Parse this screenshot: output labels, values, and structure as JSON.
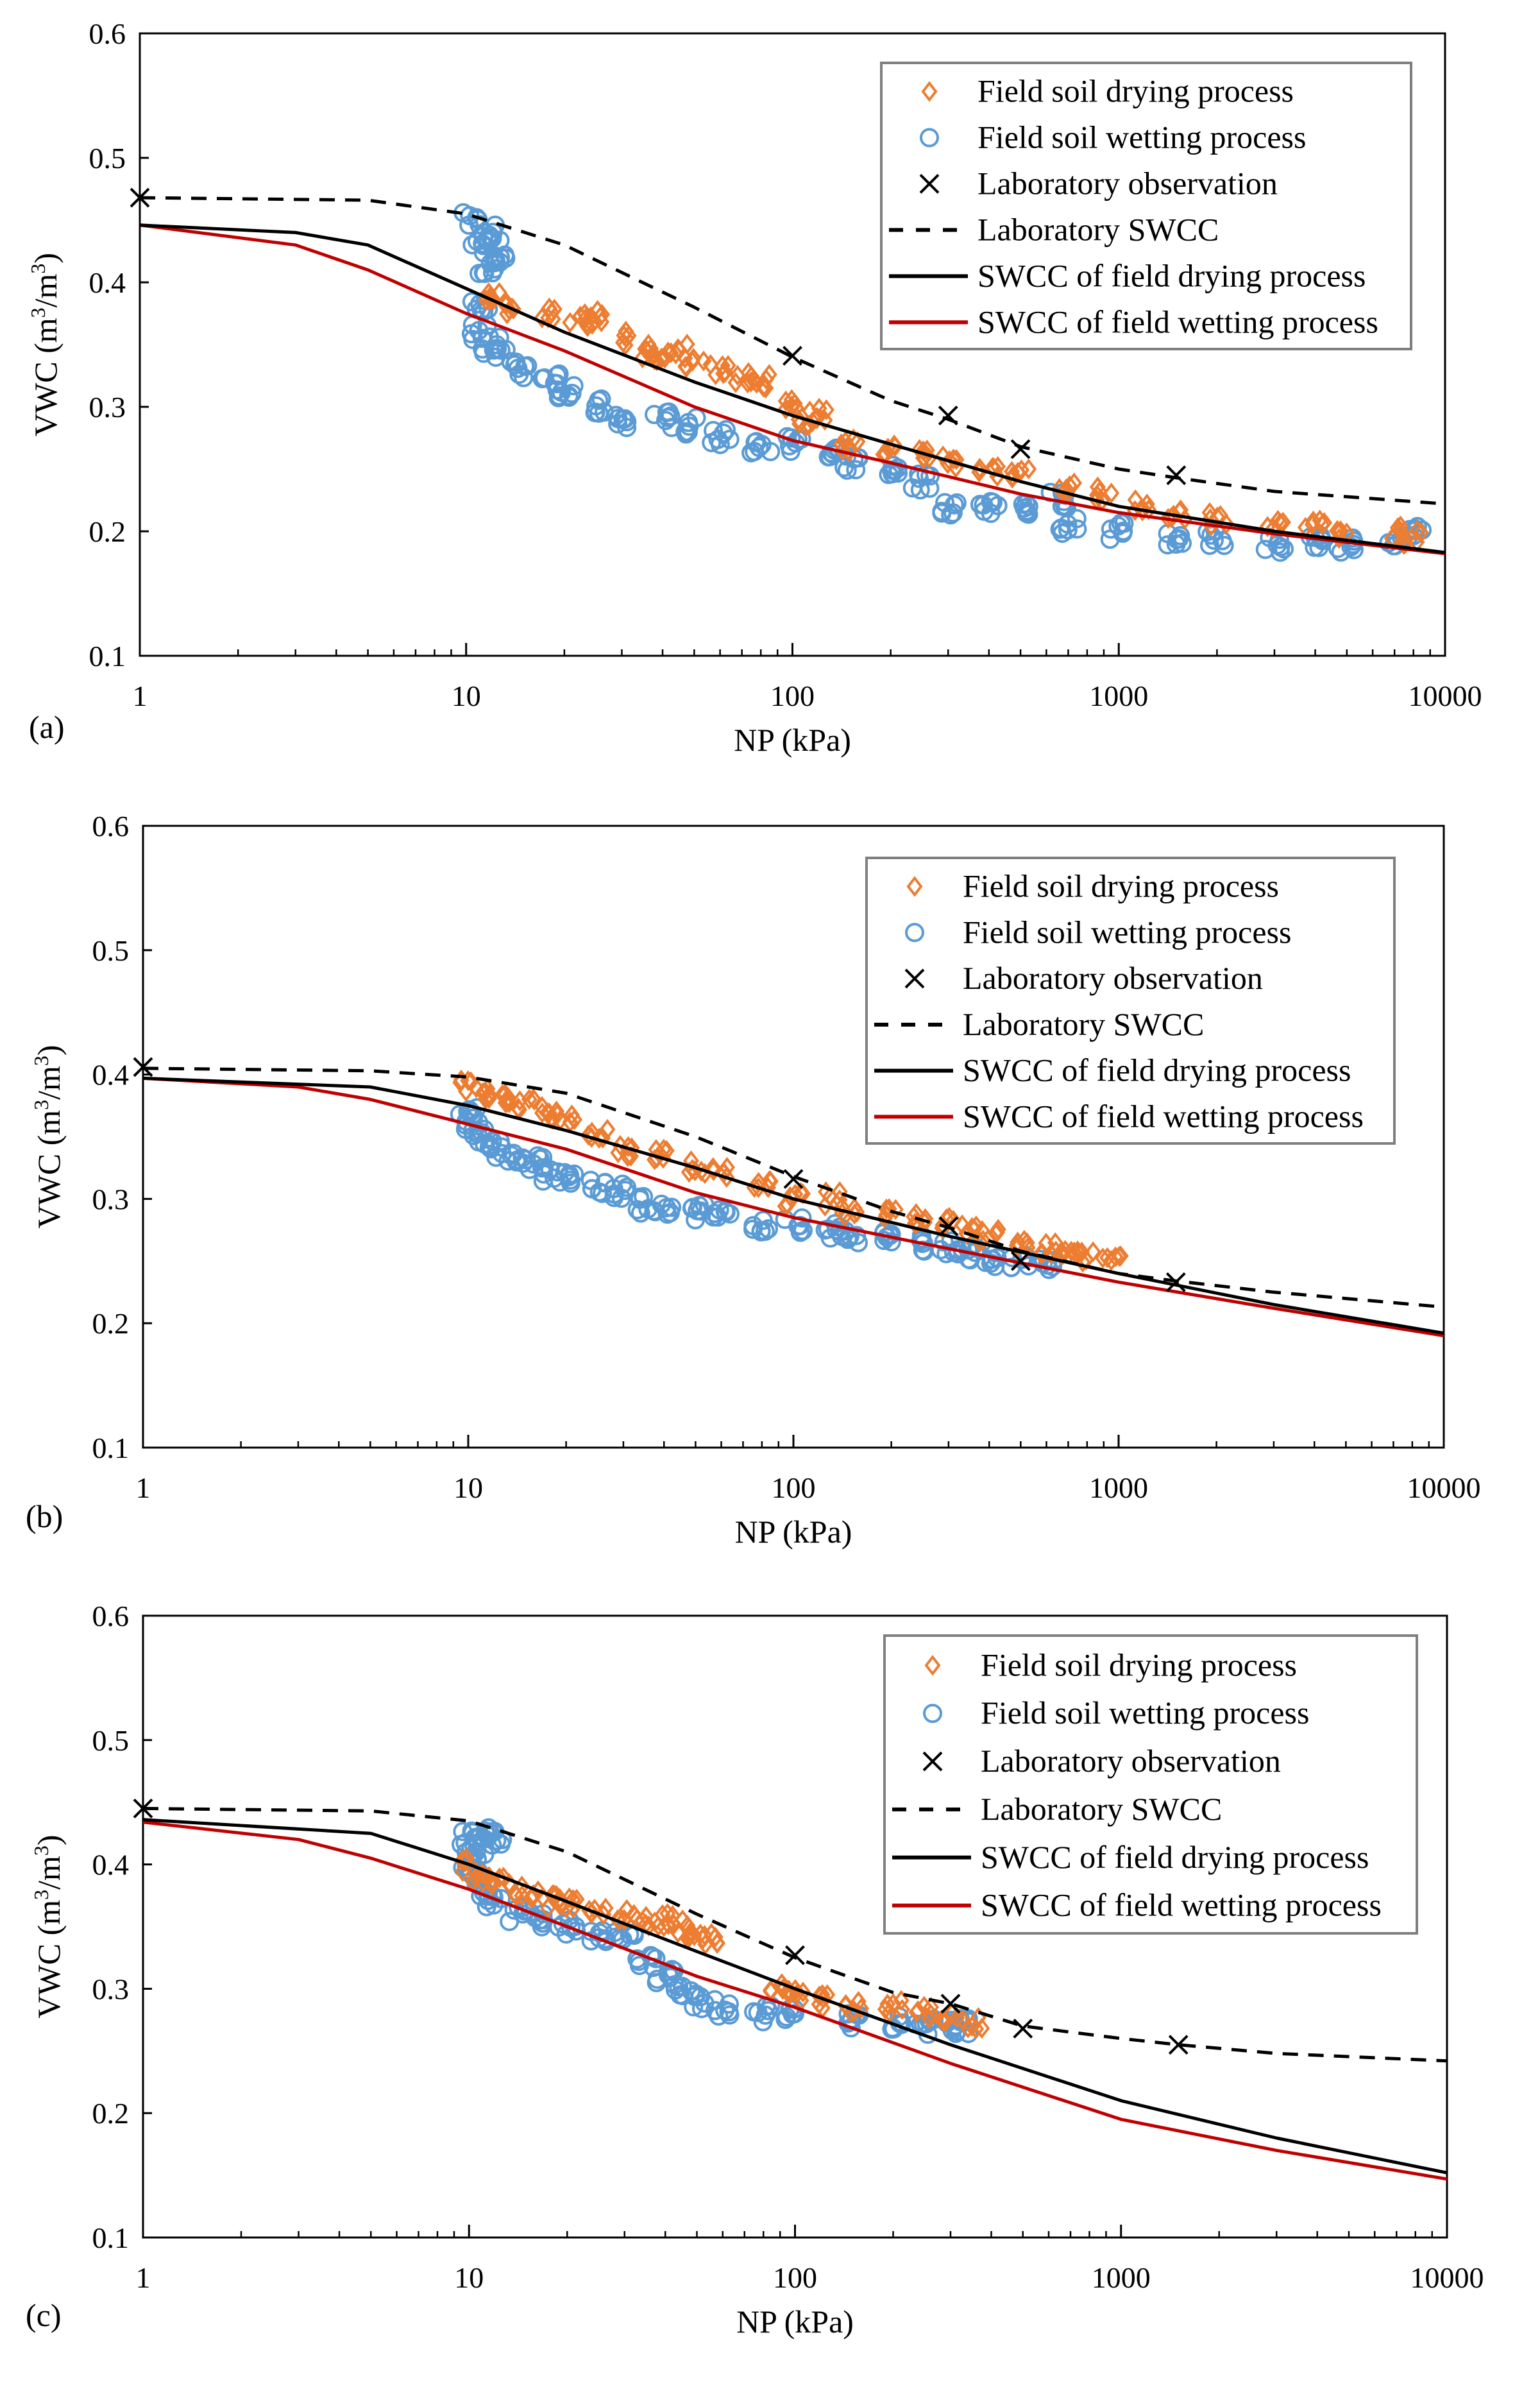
{
  "colors": {
    "drying_points": "#ED7D31",
    "wetting_points": "#5B9BD5",
    "lab": "#000000",
    "drying_curve": "#000000",
    "wetting_curve": "#C00000"
  },
  "chart_data": [
    {
      "type": "scatter",
      "panel_label": "(a)",
      "xlabel": "NP  (kPa)",
      "ylabel_main": "VWC (m",
      "ylabel_sup1": "3",
      "ylabel_mid": "/m",
      "ylabel_sup2": "3",
      "ylabel_end": ")",
      "xscale": "log",
      "xlim": [
        1,
        10000
      ],
      "ylim": [
        0.1,
        0.6
      ],
      "xticks": [
        "1",
        "10",
        "100",
        "1000",
        "10000"
      ],
      "yticks": [
        "0.1",
        "0.2",
        "0.3",
        "0.4",
        "0.5",
        "0.6"
      ],
      "legend_position": "top-right",
      "legend": [
        "Field soil drying process",
        "Field soil wetting process",
        "Laboratory observation",
        "Laboratory SWCC",
        "SWCC of field drying process",
        "SWCC of field wetting process"
      ],
      "drying_points": [
        [
          12,
          0.39
        ],
        [
          14,
          0.38
        ],
        [
          18,
          0.375
        ],
        [
          22,
          0.37
        ],
        [
          25,
          0.372
        ],
        [
          30,
          0.355
        ],
        [
          35,
          0.345
        ],
        [
          40,
          0.34
        ],
        [
          45,
          0.345
        ],
        [
          50,
          0.335
        ],
        [
          60,
          0.33
        ],
        [
          70,
          0.325
        ],
        [
          80,
          0.32
        ],
        [
          100,
          0.3
        ],
        [
          110,
          0.29
        ],
        [
          120,
          0.295
        ],
        [
          150,
          0.27
        ],
        [
          200,
          0.265
        ],
        [
          250,
          0.26
        ],
        [
          300,
          0.255
        ],
        [
          400,
          0.25
        ],
        [
          500,
          0.245
        ],
        [
          700,
          0.235
        ],
        [
          900,
          0.23
        ],
        [
          1200,
          0.22
        ],
        [
          1500,
          0.215
        ],
        [
          2000,
          0.21
        ],
        [
          3000,
          0.205
        ],
        [
          4000,
          0.205
        ],
        [
          5000,
          0.2
        ],
        [
          7000,
          0.2
        ],
        [
          8000,
          0.195
        ]
      ],
      "wetting_points": [
        [
          10.5,
          0.45
        ],
        [
          11,
          0.43
        ],
        [
          11.5,
          0.41
        ],
        [
          12,
          0.44
        ],
        [
          12.5,
          0.42
        ],
        [
          11,
          0.38
        ],
        [
          11,
          0.36
        ],
        [
          12,
          0.35
        ],
        [
          13,
          0.34
        ],
        [
          15,
          0.33
        ],
        [
          18,
          0.32
        ],
        [
          20,
          0.31
        ],
        [
          25,
          0.3
        ],
        [
          30,
          0.29
        ],
        [
          40,
          0.29
        ],
        [
          50,
          0.285
        ],
        [
          60,
          0.275
        ],
        [
          80,
          0.27
        ],
        [
          100,
          0.27
        ],
        [
          130,
          0.26
        ],
        [
          150,
          0.255
        ],
        [
          200,
          0.25
        ],
        [
          250,
          0.24
        ],
        [
          300,
          0.22
        ],
        [
          400,
          0.22
        ],
        [
          500,
          0.22
        ],
        [
          650,
          0.225
        ],
        [
          700,
          0.205
        ],
        [
          1000,
          0.2
        ],
        [
          1500,
          0.195
        ],
        [
          2000,
          0.195
        ],
        [
          3000,
          0.19
        ],
        [
          4000,
          0.19
        ],
        [
          5000,
          0.19
        ],
        [
          7000,
          0.19
        ],
        [
          8000,
          0.2
        ]
      ],
      "lab_observation": [
        [
          1,
          0.468
        ],
        [
          100,
          0.341
        ],
        [
          300,
          0.293
        ],
        [
          500,
          0.266
        ],
        [
          1500,
          0.245
        ]
      ],
      "lab_swcc": [
        [
          1,
          0.468
        ],
        [
          5,
          0.466
        ],
        [
          10,
          0.455
        ],
        [
          20,
          0.43
        ],
        [
          50,
          0.38
        ],
        [
          100,
          0.34
        ],
        [
          200,
          0.305
        ],
        [
          300,
          0.29
        ],
        [
          500,
          0.268
        ],
        [
          1000,
          0.25
        ],
        [
          1500,
          0.243
        ],
        [
          3000,
          0.232
        ],
        [
          10000,
          0.222
        ]
      ],
      "drying_swcc": [
        [
          1,
          0.446
        ],
        [
          3,
          0.44
        ],
        [
          5,
          0.43
        ],
        [
          10,
          0.395
        ],
        [
          20,
          0.36
        ],
        [
          50,
          0.32
        ],
        [
          100,
          0.293
        ],
        [
          200,
          0.27
        ],
        [
          500,
          0.24
        ],
        [
          1000,
          0.22
        ],
        [
          3000,
          0.2
        ],
        [
          10000,
          0.183
        ]
      ],
      "wetting_swcc": [
        [
          1,
          0.446
        ],
        [
          3,
          0.43
        ],
        [
          5,
          0.41
        ],
        [
          10,
          0.375
        ],
        [
          20,
          0.345
        ],
        [
          50,
          0.3
        ],
        [
          100,
          0.273
        ],
        [
          200,
          0.255
        ],
        [
          500,
          0.23
        ],
        [
          1000,
          0.215
        ],
        [
          3000,
          0.198
        ],
        [
          10000,
          0.182
        ]
      ]
    },
    {
      "type": "scatter",
      "panel_label": "(b)",
      "xlabel": "NP  (kPa)",
      "ylabel_main": "VWC (m",
      "ylabel_sup1": "3",
      "ylabel_mid": "/m",
      "ylabel_sup2": "3",
      "ylabel_end": ")",
      "xscale": "log",
      "xlim": [
        1,
        10000
      ],
      "ylim": [
        0.1,
        0.6
      ],
      "xticks": [
        "1",
        "10",
        "100",
        "1000",
        "10000"
      ],
      "yticks": [
        "0.1",
        "0.2",
        "0.3",
        "0.4",
        "0.5",
        "0.6"
      ],
      "legend_position": "top-right",
      "legend": [
        "Field soil drying process",
        "Field soil wetting process",
        "Laboratory observation",
        "Laboratory SWCC",
        "SWCC of field drying process",
        "SWCC of field wetting process"
      ],
      "drying_points": [
        [
          10,
          0.39
        ],
        [
          11,
          0.385
        ],
        [
          13,
          0.38
        ],
        [
          15,
          0.375
        ],
        [
          18,
          0.37
        ],
        [
          20,
          0.365
        ],
        [
          25,
          0.35
        ],
        [
          30,
          0.34
        ],
        [
          40,
          0.335
        ],
        [
          50,
          0.325
        ],
        [
          60,
          0.32
        ],
        [
          80,
          0.31
        ],
        [
          100,
          0.3
        ],
        [
          130,
          0.3
        ],
        [
          150,
          0.29
        ],
        [
          200,
          0.29
        ],
        [
          250,
          0.285
        ],
        [
          300,
          0.28
        ],
        [
          350,
          0.275
        ],
        [
          400,
          0.27
        ],
        [
          500,
          0.265
        ],
        [
          600,
          0.26
        ],
        [
          700,
          0.258
        ],
        [
          800,
          0.255
        ],
        [
          950,
          0.25
        ]
      ],
      "wetting_points": [
        [
          10,
          0.37
        ],
        [
          10.5,
          0.36
        ],
        [
          11,
          0.35
        ],
        [
          12,
          0.34
        ],
        [
          14,
          0.335
        ],
        [
          16,
          0.33
        ],
        [
          18,
          0.32
        ],
        [
          20,
          0.315
        ],
        [
          25,
          0.31
        ],
        [
          30,
          0.305
        ],
        [
          35,
          0.295
        ],
        [
          40,
          0.29
        ],
        [
          50,
          0.29
        ],
        [
          60,
          0.285
        ],
        [
          80,
          0.28
        ],
        [
          100,
          0.278
        ],
        [
          130,
          0.275
        ],
        [
          150,
          0.27
        ],
        [
          200,
          0.268
        ],
        [
          250,
          0.265
        ],
        [
          300,
          0.26
        ],
        [
          350,
          0.255
        ],
        [
          400,
          0.25
        ],
        [
          500,
          0.25
        ],
        [
          600,
          0.25
        ]
      ],
      "lab_observation": [
        [
          1,
          0.406
        ],
        [
          100,
          0.316
        ],
        [
          300,
          0.278
        ],
        [
          500,
          0.25
        ],
        [
          1500,
          0.233
        ]
      ],
      "lab_swcc": [
        [
          1,
          0.405
        ],
        [
          5,
          0.403
        ],
        [
          10,
          0.398
        ],
        [
          20,
          0.385
        ],
        [
          50,
          0.35
        ],
        [
          100,
          0.318
        ],
        [
          200,
          0.29
        ],
        [
          300,
          0.277
        ],
        [
          500,
          0.258
        ],
        [
          1000,
          0.24
        ],
        [
          1500,
          0.234
        ],
        [
          3000,
          0.225
        ],
        [
          10000,
          0.213
        ]
      ],
      "drying_swcc": [
        [
          1,
          0.397
        ],
        [
          5,
          0.39
        ],
        [
          10,
          0.375
        ],
        [
          20,
          0.355
        ],
        [
          50,
          0.325
        ],
        [
          100,
          0.3
        ],
        [
          300,
          0.27
        ],
        [
          1000,
          0.24
        ],
        [
          3000,
          0.215
        ],
        [
          10000,
          0.192
        ]
      ],
      "wetting_swcc": [
        [
          1,
          0.397
        ],
        [
          3,
          0.39
        ],
        [
          5,
          0.38
        ],
        [
          10,
          0.36
        ],
        [
          20,
          0.34
        ],
        [
          50,
          0.305
        ],
        [
          100,
          0.285
        ],
        [
          300,
          0.26
        ],
        [
          1000,
          0.233
        ],
        [
          3000,
          0.212
        ],
        [
          10000,
          0.19
        ]
      ]
    },
    {
      "type": "scatter",
      "panel_label": "(c)",
      "xlabel": "NP  (kPa)",
      "ylabel_main": "VWC (m",
      "ylabel_sup1": "3",
      "ylabel_mid": "/m",
      "ylabel_sup2": "3",
      "ylabel_end": ")",
      "xscale": "log",
      "xlim": [
        1,
        10000
      ],
      "ylim": [
        0.1,
        0.6
      ],
      "xticks": [
        "1",
        "10",
        "100",
        "1000",
        "10000"
      ],
      "yticks": [
        "0.1",
        "0.2",
        "0.3",
        "0.4",
        "0.5",
        "0.6"
      ],
      "legend_position": "top-right",
      "legend": [
        "Field soil drying process",
        "Field soil wetting process",
        "Laboratory observation",
        "Laboratory SWCC",
        "SWCC of field drying process",
        "SWCC of field wetting process"
      ],
      "drying_points": [
        [
          10,
          0.4
        ],
        [
          11,
          0.39
        ],
        [
          12,
          0.385
        ],
        [
          14,
          0.38
        ],
        [
          16,
          0.375
        ],
        [
          18,
          0.37
        ],
        [
          20,
          0.37
        ],
        [
          25,
          0.365
        ],
        [
          30,
          0.36
        ],
        [
          35,
          0.355
        ],
        [
          40,
          0.355
        ],
        [
          45,
          0.35
        ],
        [
          50,
          0.345
        ],
        [
          55,
          0.34
        ],
        [
          90,
          0.3
        ],
        [
          100,
          0.295
        ],
        [
          120,
          0.29
        ],
        [
          150,
          0.285
        ],
        [
          200,
          0.285
        ],
        [
          250,
          0.28
        ],
        [
          300,
          0.278
        ],
        [
          350,
          0.272
        ]
      ],
      "wetting_points": [
        [
          10,
          0.42
        ],
        [
          10.5,
          0.41
        ],
        [
          11,
          0.425
        ],
        [
          12,
          0.42
        ],
        [
          10,
          0.4
        ],
        [
          10.5,
          0.39
        ],
        [
          11,
          0.38
        ],
        [
          12,
          0.37
        ],
        [
          14,
          0.36
        ],
        [
          16,
          0.355
        ],
        [
          20,
          0.35
        ],
        [
          25,
          0.345
        ],
        [
          30,
          0.34
        ],
        [
          35,
          0.32
        ],
        [
          40,
          0.31
        ],
        [
          45,
          0.3
        ],
        [
          50,
          0.29
        ],
        [
          60,
          0.285
        ],
        [
          80,
          0.28
        ],
        [
          100,
          0.28
        ],
        [
          150,
          0.275
        ],
        [
          200,
          0.272
        ],
        [
          250,
          0.27
        ],
        [
          300,
          0.27
        ],
        [
          330,
          0.27
        ]
      ],
      "lab_observation": [
        [
          1,
          0.445
        ],
        [
          100,
          0.327
        ],
        [
          300,
          0.288
        ],
        [
          500,
          0.268
        ],
        [
          1500,
          0.255
        ]
      ],
      "lab_swcc": [
        [
          1,
          0.445
        ],
        [
          5,
          0.443
        ],
        [
          10,
          0.435
        ],
        [
          20,
          0.41
        ],
        [
          50,
          0.36
        ],
        [
          100,
          0.325
        ],
        [
          200,
          0.297
        ],
        [
          300,
          0.288
        ],
        [
          500,
          0.27
        ],
        [
          1000,
          0.26
        ],
        [
          1500,
          0.255
        ],
        [
          3000,
          0.248
        ],
        [
          10000,
          0.242
        ]
      ],
      "drying_swcc": [
        [
          1,
          0.436
        ],
        [
          5,
          0.425
        ],
        [
          10,
          0.4
        ],
        [
          20,
          0.37
        ],
        [
          50,
          0.33
        ],
        [
          100,
          0.3
        ],
        [
          300,
          0.255
        ],
        [
          1000,
          0.21
        ],
        [
          3000,
          0.18
        ],
        [
          10000,
          0.152
        ]
      ],
      "wetting_swcc": [
        [
          1,
          0.434
        ],
        [
          3,
          0.42
        ],
        [
          5,
          0.405
        ],
        [
          10,
          0.38
        ],
        [
          20,
          0.35
        ],
        [
          50,
          0.31
        ],
        [
          100,
          0.285
        ],
        [
          300,
          0.24
        ],
        [
          1000,
          0.195
        ],
        [
          3000,
          0.17
        ],
        [
          10000,
          0.147
        ]
      ]
    }
  ]
}
